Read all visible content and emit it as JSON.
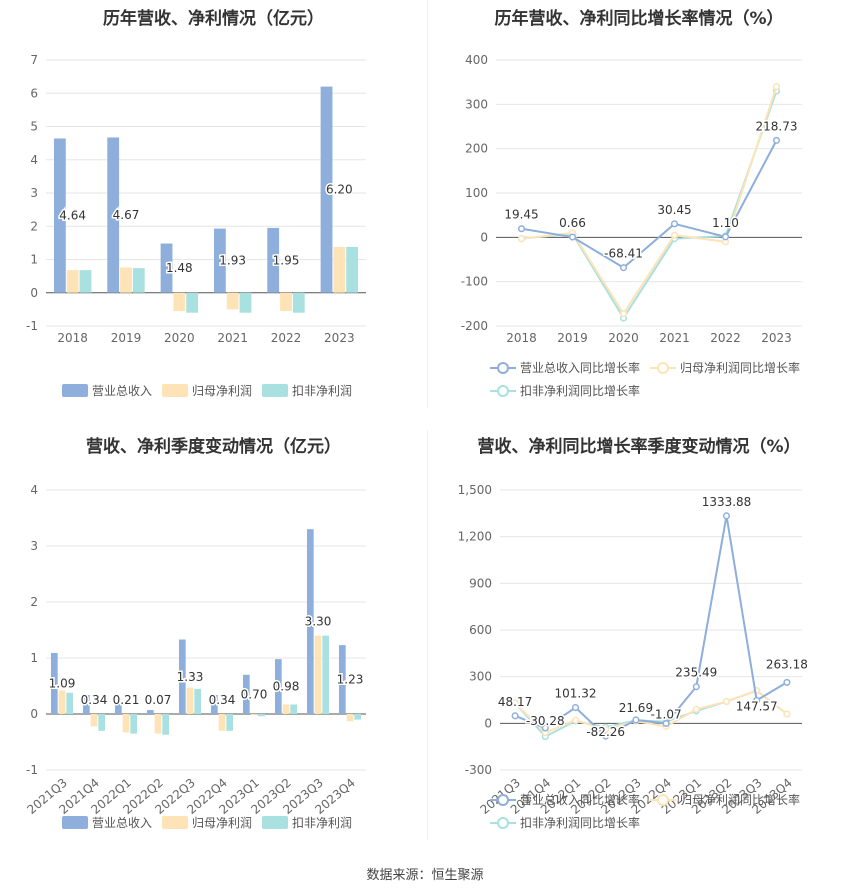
{
  "source_label": "数据来源：恒生聚源",
  "colors": {
    "revenue": "#8eaedb",
    "net": "#fde3b6",
    "deduct": "#a9e0e0",
    "net_line": "#fde3b6",
    "deduct_line": "#a9e0e0"
  },
  "chart_data": [
    {
      "type": "bar",
      "title": "历年营收、净利情况（亿元）",
      "categories": [
        "2018",
        "2019",
        "2020",
        "2021",
        "2022",
        "2023"
      ],
      "ylim": [
        -1,
        7
      ],
      "yticks": [
        -1,
        0,
        1,
        2,
        3,
        4,
        5,
        6,
        7
      ],
      "series": [
        {
          "name": "营业总收入",
          "values": [
            4.64,
            4.67,
            1.48,
            1.93,
            1.95,
            6.2
          ]
        },
        {
          "name": "归母净利润",
          "values": [
            0.68,
            0.76,
            -0.55,
            -0.5,
            -0.55,
            1.38
          ]
        },
        {
          "name": "扣非净利润",
          "values": [
            0.68,
            0.74,
            -0.6,
            -0.6,
            -0.6,
            1.38
          ]
        }
      ],
      "data_labels": [
        "4.64",
        "4.67",
        "1.48",
        "1.93",
        "1.95",
        "6.20"
      ]
    },
    {
      "type": "line",
      "title": "历年营收、净利同比增长率情况（%）",
      "categories": [
        "2018",
        "2019",
        "2020",
        "2021",
        "2022",
        "2023"
      ],
      "ylim": [
        -200,
        400
      ],
      "yticks": [
        -200,
        -100,
        0,
        100,
        200,
        300,
        400
      ],
      "series": [
        {
          "name": "营业总收入同比增长率",
          "values": [
            19.45,
            0.66,
            -68.41,
            30.45,
            1.1,
            218.73
          ]
        },
        {
          "name": "归母净利润同比增长率",
          "values": [
            -3,
            10,
            -172,
            5,
            -10,
            340
          ]
        },
        {
          "name": "扣非净利润同比增长率",
          "values": [
            -3,
            8,
            -182,
            -3,
            3,
            330
          ]
        }
      ],
      "data_labels": [
        "19.45",
        "0.66",
        "-68.41",
        "30.45",
        "1.10",
        "218.73"
      ]
    },
    {
      "type": "bar",
      "title": "营收、净利季度变动情况（亿元）",
      "categories": [
        "2021Q3",
        "2021Q4",
        "2022Q1",
        "2022Q2",
        "2022Q3",
        "2022Q4",
        "2023Q1",
        "2023Q2",
        "2023Q3",
        "2023Q4"
      ],
      "ylim": [
        -1,
        4
      ],
      "yticks": [
        -1,
        0,
        1,
        2,
        3,
        4
      ],
      "series": [
        {
          "name": "营业总收入",
          "values": [
            1.09,
            0.34,
            0.21,
            0.07,
            1.33,
            0.34,
            0.7,
            0.98,
            3.3,
            1.23
          ]
        },
        {
          "name": "归母净利润",
          "values": [
            0.42,
            -0.22,
            -0.33,
            -0.35,
            0.47,
            -0.3,
            -0.02,
            0.17,
            1.4,
            -0.13
          ]
        },
        {
          "name": "扣非净利润",
          "values": [
            0.38,
            -0.3,
            -0.35,
            -0.37,
            0.45,
            -0.3,
            -0.04,
            0.17,
            1.4,
            -0.1
          ]
        }
      ],
      "data_labels": [
        "1.09",
        "0.34",
        "0.21",
        "0.07",
        "1.33",
        "0.34",
        "0.70",
        "0.98",
        "3.30",
        "1.23"
      ]
    },
    {
      "type": "line",
      "title": "营收、净利同比增长率季度变动情况（%）",
      "categories": [
        "2021Q3",
        "2021Q4",
        "2022Q1",
        "2022Q2",
        "2022Q3",
        "2022Q4",
        "2023Q1",
        "2023Q2",
        "2023Q3",
        "2023Q4"
      ],
      "ylim": [
        -300,
        1500
      ],
      "yticks": [
        -300,
        0,
        300,
        600,
        900,
        1200,
        1500
      ],
      "ytick_labels": [
        "-300",
        "0",
        "300",
        "600",
        "900",
        "1,200",
        "1,500"
      ],
      "series": [
        {
          "name": "营业总收入同比增长率",
          "values": [
            48.17,
            -30.28,
            101.32,
            -82.26,
            21.69,
            -1.07,
            235.49,
            1333.88,
            147.57,
            263.18
          ]
        },
        {
          "name": "归母净利润同比增长率",
          "values": [
            130,
            -60,
            20,
            -40,
            15,
            -20,
            90,
            140,
            210,
            60
          ]
        },
        {
          "name": "扣非净利润同比增长率",
          "values": [
            130,
            -85,
            15,
            -25,
            20,
            10,
            80,
            140,
            210,
            60
          ]
        }
      ],
      "data_labels": [
        "48.17",
        "-30.28",
        "101.32",
        "-82.26",
        "21.69",
        "-1.07",
        "235.49",
        "1333.88",
        "147.57",
        "263.18"
      ]
    }
  ]
}
